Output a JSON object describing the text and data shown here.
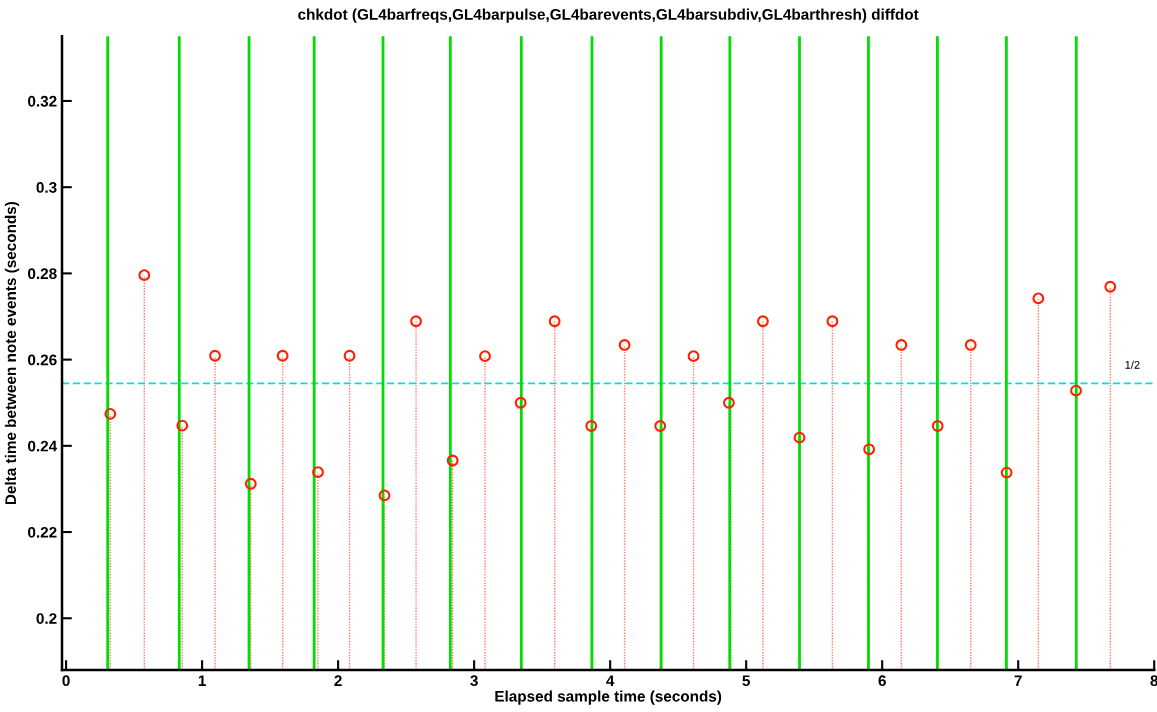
{
  "chart_data": {
    "type": "lollipop",
    "title": "chkdot (GL4barfreqs,GL4barpulse,GL4barevents,GL4barsubdiv,GL4barthresh) diffdot",
    "xlabel": "Elapsed sample time (seconds)",
    "ylabel": "Delta time between note events (seconds)",
    "x": [
      0.325,
      0.575,
      0.854,
      1.095,
      1.358,
      1.592,
      1.852,
      2.084,
      2.341,
      2.573,
      2.842,
      3.08,
      3.342,
      3.592,
      3.861,
      4.106,
      4.368,
      4.613,
      4.873,
      5.123,
      5.392,
      5.634,
      5.904,
      6.141,
      6.408,
      6.651,
      6.915,
      7.148,
      7.425,
      7.677
    ],
    "values": [
      0.2474,
      0.2796,
      0.2447,
      0.2609,
      0.2312,
      0.2609,
      0.2339,
      0.2609,
      0.2285,
      0.2689,
      0.2366,
      0.2608,
      0.25,
      0.2689,
      0.2446,
      0.2634,
      0.2446,
      0.2608,
      0.25,
      0.2689,
      0.2419,
      0.2689,
      0.2392,
      0.2634,
      0.2446,
      0.2634,
      0.2338,
      0.2742,
      0.2528,
      0.2769
    ],
    "color": "#ff2000",
    "marker": "circle",
    "line_style": "dotted",
    "xlim": [
      -0.03,
      8
    ],
    "ylim": [
      0.188,
      0.335
    ],
    "xticks": [
      0,
      1,
      2,
      3,
      4,
      5,
      6,
      7,
      8
    ],
    "yticks": [
      0.2,
      0.22,
      0.24,
      0.26,
      0.28,
      0.3,
      0.32
    ],
    "grid": false,
    "annotations": [
      "1/2"
    ],
    "ref_lines": [
      {
        "axis": "y",
        "value": 0.2545,
        "color": "#00e0e0",
        "line_style": "dashed"
      },
      {
        "axis": "x",
        "value": 0.306,
        "color": "#00dd00",
        "line_style": "solid"
      },
      {
        "axis": "x",
        "value": 0.832,
        "color": "#00dd00",
        "line_style": "solid"
      },
      {
        "axis": "x",
        "value": 1.345,
        "color": "#00dd00",
        "line_style": "solid"
      },
      {
        "axis": "x",
        "value": 1.824,
        "color": "#00dd00",
        "line_style": "solid"
      },
      {
        "axis": "x",
        "value": 2.33,
        "color": "#00dd00",
        "line_style": "solid"
      },
      {
        "axis": "x",
        "value": 2.825,
        "color": "#00dd00",
        "line_style": "solid"
      },
      {
        "axis": "x",
        "value": 3.347,
        "color": "#00dd00",
        "line_style": "solid"
      },
      {
        "axis": "x",
        "value": 3.866,
        "color": "#00dd00",
        "line_style": "solid"
      },
      {
        "axis": "x",
        "value": 4.375,
        "color": "#00dd00",
        "line_style": "solid"
      },
      {
        "axis": "x",
        "value": 4.88,
        "color": "#00dd00",
        "line_style": "solid"
      },
      {
        "axis": "x",
        "value": 5.392,
        "color": "#00dd00",
        "line_style": "solid"
      },
      {
        "axis": "x",
        "value": 5.899,
        "color": "#00dd00",
        "line_style": "solid"
      },
      {
        "axis": "x",
        "value": 6.406,
        "color": "#00dd00",
        "line_style": "solid"
      },
      {
        "axis": "x",
        "value": 6.913,
        "color": "#00dd00",
        "line_style": "solid"
      },
      {
        "axis": "x",
        "value": 7.427,
        "color": "#00dd00",
        "line_style": "solid"
      }
    ]
  }
}
